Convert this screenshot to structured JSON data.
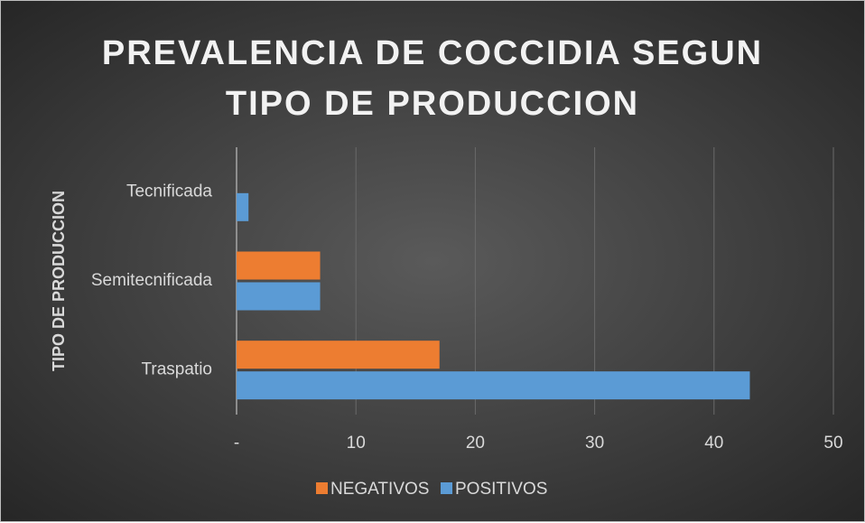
{
  "chart_data": {
    "type": "barh",
    "title": "PREVALENCIA DE COCCIDIA SEGUN\nTIPO DE PRODUCCION",
    "y_label": "TIPO DE PRODUCCION",
    "categories": [
      "Traspatio",
      "Semitecnificada",
      "Tecnificada"
    ],
    "series": [
      {
        "name": "NEGATIVOS",
        "color": "#ed7d31",
        "values": [
          17,
          7,
          0
        ]
      },
      {
        "name": "POSITIVOS",
        "color": "#5b9bd5",
        "values": [
          43,
          7,
          1
        ]
      }
    ],
    "xlim": [
      0,
      50
    ],
    "xticks": [
      {
        "value": 0,
        "label": "-"
      },
      10,
      20,
      30,
      40,
      50
    ],
    "grid": true,
    "legend": "bottom"
  }
}
